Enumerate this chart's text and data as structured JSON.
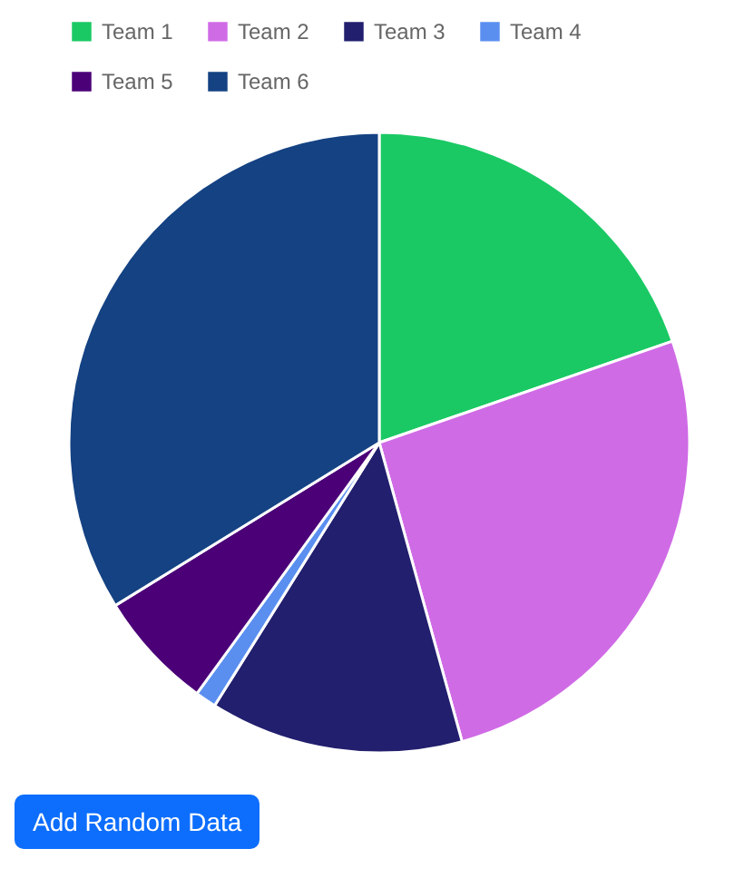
{
  "chart_data": {
    "type": "pie",
    "categories": [
      "Team 1",
      "Team 2",
      "Team 3",
      "Team 4",
      "Team 5",
      "Team 6"
    ],
    "values": [
      19.7,
      26.0,
      13.2,
      1.1,
      6.2,
      33.8
    ],
    "colors": [
      "#1ac964",
      "#d06be6",
      "#221f6e",
      "#5a8ff0",
      "#4b0078",
      "#144283"
    ],
    "legend": "top",
    "annotations": [
      "Add Random Data"
    ]
  }
}
